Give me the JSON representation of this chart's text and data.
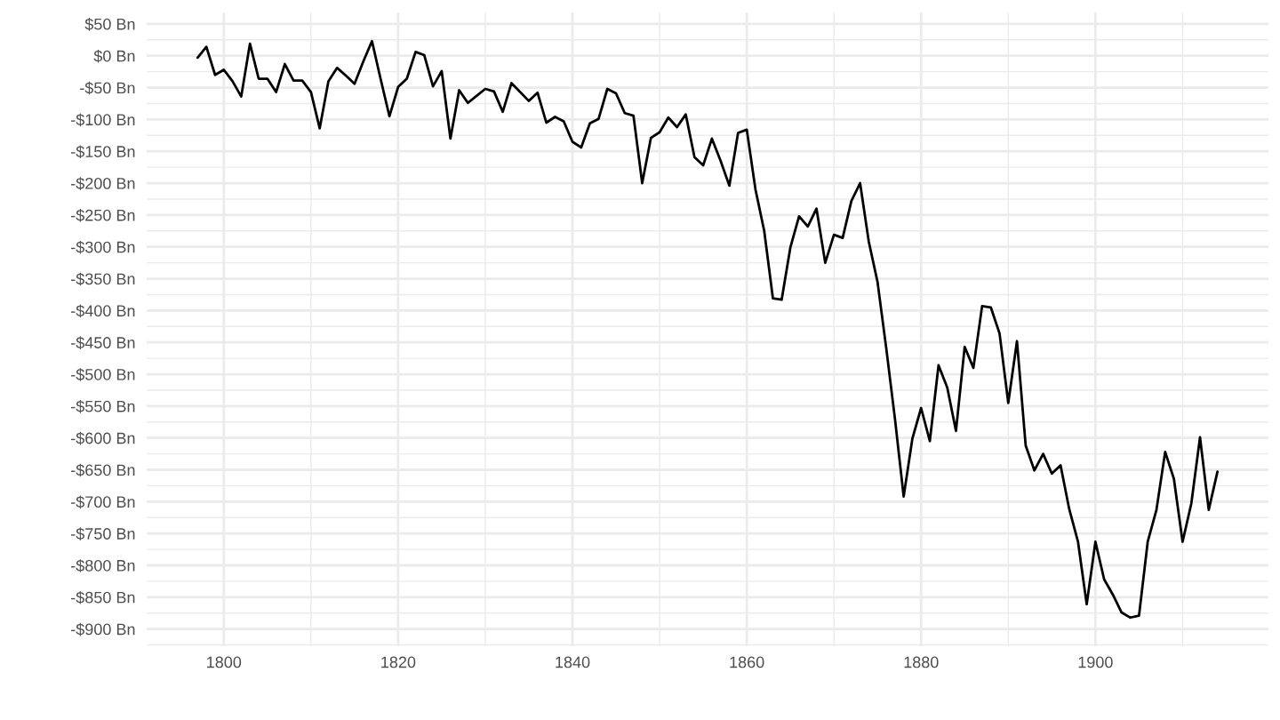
{
  "chart_data": {
    "type": "line",
    "color": "#000000",
    "line_style": "solid",
    "grid": true,
    "x": [
      1797,
      1798,
      1799,
      1800,
      1801,
      1802,
      1803,
      1804,
      1805,
      1806,
      1807,
      1808,
      1809,
      1810,
      1811,
      1812,
      1813,
      1814,
      1815,
      1816,
      1817,
      1818,
      1819,
      1820,
      1821,
      1822,
      1823,
      1824,
      1825,
      1826,
      1827,
      1828,
      1829,
      1830,
      1831,
      1832,
      1833,
      1834,
      1835,
      1836,
      1837,
      1838,
      1839,
      1840,
      1841,
      1842,
      1843,
      1844,
      1845,
      1846,
      1847,
      1848,
      1849,
      1850,
      1851,
      1852,
      1853,
      1854,
      1855,
      1856,
      1857,
      1858,
      1859,
      1860,
      1861,
      1862,
      1863,
      1864,
      1865,
      1866,
      1867,
      1868,
      1869,
      1870,
      1871,
      1872,
      1873,
      1874,
      1875,
      1876,
      1877,
      1878,
      1879,
      1880,
      1881,
      1882,
      1883,
      1884,
      1885,
      1886,
      1887,
      1888,
      1889,
      1890,
      1891,
      1892,
      1893,
      1894,
      1895,
      1896,
      1897,
      1898,
      1899,
      1900,
      1901,
      1902,
      1903,
      1904,
      1905,
      1906,
      1907,
      1908,
      1909,
      1910,
      1911,
      1912,
      1913,
      1914
    ],
    "values": [
      -3,
      14,
      -30,
      -22,
      -40,
      -64,
      19,
      -36,
      -36,
      -57,
      -13,
      -39,
      -39,
      -57,
      -114,
      -40,
      -19,
      -31,
      -44,
      -9,
      23,
      -37,
      -95,
      -49,
      -36,
      6,
      1,
      -48,
      -24,
      -130,
      -54,
      -74,
      -63,
      -52,
      -56,
      -88,
      -43,
      -57,
      -71,
      -58,
      -105,
      -96,
      -103,
      -135,
      -144,
      -106,
      -99,
      -52,
      -59,
      -90,
      -94,
      -200,
      -129,
      -120,
      -97,
      -112,
      -92,
      -159,
      -172,
      -130,
      -165,
      -204,
      -121,
      -116,
      -210,
      -275,
      -381,
      -383,
      -301,
      -252,
      -268,
      -240,
      -325,
      -281,
      -286,
      -228,
      -200,
      -292,
      -355,
      -459,
      -570,
      -692,
      -601,
      -553,
      -605,
      -486,
      -521,
      -589,
      -457,
      -490,
      -393,
      -395,
      -436,
      -545,
      -448,
      -612,
      -651,
      -625,
      -656,
      -643,
      -712,
      -763,
      -861,
      -763,
      -822,
      -846,
      -874,
      -882,
      -879,
      -763,
      -713,
      -622,
      -664,
      -763,
      -703,
      -599,
      -713,
      -653
    ],
    "xlim": [
      1791.15,
      1919.85
    ],
    "xticks": [
      1800,
      {
        "value": 1810,
        "label": null
      },
      1820,
      {
        "value": 1830,
        "label": null
      },
      1840,
      {
        "value": 1850,
        "label": null
      },
      1860,
      {
        "value": 1870,
        "label": null
      },
      1880,
      {
        "value": 1890,
        "label": null
      },
      1900,
      {
        "value": 1910,
        "label": null
      }
    ],
    "ylim": [
      -927,
      68
    ],
    "yticks": [
      {
        "value": 50,
        "label": "$50 Bn"
      },
      {
        "value": 25,
        "label": null
      },
      {
        "value": 0,
        "label": "$0 Bn"
      },
      {
        "value": -25,
        "label": null
      },
      {
        "value": -50,
        "label": "-$50 Bn"
      },
      {
        "value": -75,
        "label": null
      },
      {
        "value": -100,
        "label": "-$100 Bn"
      },
      {
        "value": -125,
        "label": null
      },
      {
        "value": -150,
        "label": "-$150 Bn"
      },
      {
        "value": -175,
        "label": null
      },
      {
        "value": -200,
        "label": "-$200 Bn"
      },
      {
        "value": -225,
        "label": null
      },
      {
        "value": -250,
        "label": "-$250 Bn"
      },
      {
        "value": -275,
        "label": null
      },
      {
        "value": -300,
        "label": "-$300 Bn"
      },
      {
        "value": -325,
        "label": null
      },
      {
        "value": -350,
        "label": "-$350 Bn"
      },
      {
        "value": -375,
        "label": null
      },
      {
        "value": -400,
        "label": "-$400 Bn"
      },
      {
        "value": -425,
        "label": null
      },
      {
        "value": -450,
        "label": "-$450 Bn"
      },
      {
        "value": -475,
        "label": null
      },
      {
        "value": -500,
        "label": "-$500 Bn"
      },
      {
        "value": -525,
        "label": null
      },
      {
        "value": -550,
        "label": "-$550 Bn"
      },
      {
        "value": -575,
        "label": null
      },
      {
        "value": -600,
        "label": "-$600 Bn"
      },
      {
        "value": -625,
        "label": null
      },
      {
        "value": -650,
        "label": "-$650 Bn"
      },
      {
        "value": -675,
        "label": null
      },
      {
        "value": -700,
        "label": "-$700 Bn"
      },
      {
        "value": -725,
        "label": null
      },
      {
        "value": -750,
        "label": "-$750 Bn"
      },
      {
        "value": -775,
        "label": null
      },
      {
        "value": -800,
        "label": "-$800 Bn"
      },
      {
        "value": -825,
        "label": null
      },
      {
        "value": -850,
        "label": "-$850 Bn"
      },
      {
        "value": -875,
        "label": null
      },
      {
        "value": -900,
        "label": "-$900 Bn"
      },
      {
        "value": -925,
        "label": null
      }
    ]
  }
}
